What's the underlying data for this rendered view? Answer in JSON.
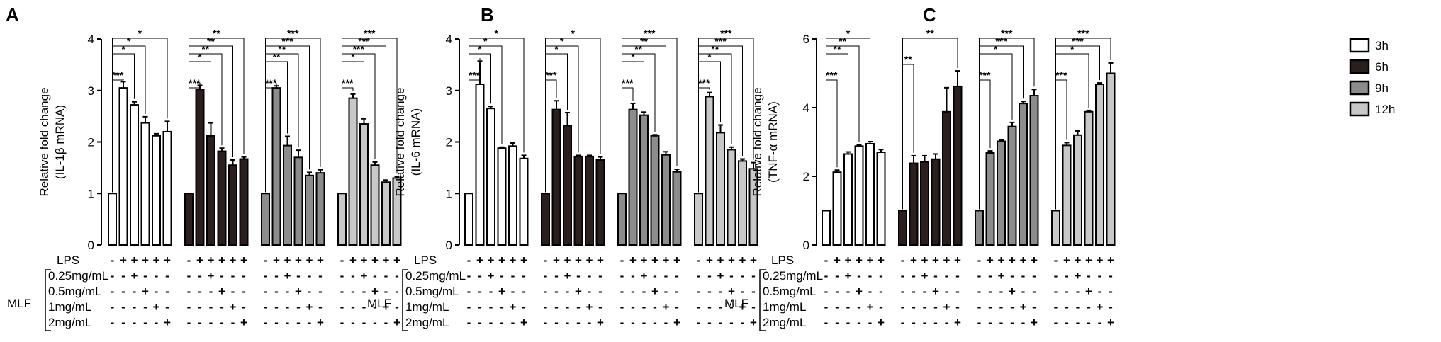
{
  "figure": {
    "legend": [
      {
        "label": "3h",
        "color": "#ffffff"
      },
      {
        "label": "6h",
        "color": "#2a1f1d"
      },
      {
        "label": "9h",
        "color": "#8c8c8c"
      },
      {
        "label": "12h",
        "color": "#c8c8c8"
      }
    ],
    "treatment_rows": {
      "lps_label": "LPS",
      "group_label": "MLF",
      "dose_labels": [
        "0.25mg/mL",
        "0.5mg/mL",
        "1mg/mL",
        "2mg/mL"
      ]
    },
    "bar_order_signs": [
      [
        "-",
        "+",
        "+",
        "+",
        "+",
        "+"
      ],
      [
        "-",
        "-",
        "+",
        "-",
        "-",
        "-"
      ],
      [
        "-",
        "-",
        "-",
        "+",
        "-",
        "-"
      ],
      [
        "-",
        "-",
        "-",
        "-",
        "+",
        "-"
      ],
      [
        "-",
        "-",
        "-",
        "-",
        "-",
        "+"
      ]
    ]
  },
  "chart_data": [
    {
      "panel": "A",
      "type": "bar",
      "ylabel_line1": "Relative fold change",
      "ylabel_line2": "(IL-1β mRNA)",
      "ylim": [
        0,
        4
      ],
      "yticks": [
        "0",
        "1",
        "2",
        "3",
        "4"
      ],
      "series": [
        {
          "name": "3h",
          "values": [
            1.0,
            3.05,
            2.72,
            2.37,
            2.12,
            2.2
          ],
          "errors": [
            0,
            0.12,
            0.06,
            0.12,
            0.04,
            0.2
          ],
          "sig": [
            {
              "to": 1,
              "label": "***"
            },
            {
              "to": 2,
              "label": "*"
            },
            {
              "to": 3,
              "label": "*"
            },
            {
              "to": 5,
              "label": "*"
            }
          ]
        },
        {
          "name": "6h",
          "values": [
            1.0,
            3.02,
            2.12,
            1.82,
            1.55,
            1.67
          ],
          "errors": [
            0,
            0.08,
            0.25,
            0.06,
            0.1,
            0.04
          ],
          "sig": [
            {
              "to": 1,
              "label": "***"
            },
            {
              "to": 2,
              "label": "*"
            },
            {
              "to": 3,
              "label": "**"
            },
            {
              "to": 4,
              "label": "**"
            },
            {
              "to": 5,
              "label": "**"
            }
          ]
        },
        {
          "name": "9h",
          "values": [
            1.0,
            3.05,
            1.93,
            1.7,
            1.35,
            1.4
          ],
          "errors": [
            0,
            0.04,
            0.18,
            0.14,
            0.06,
            0.06
          ],
          "sig": [
            {
              "to": 1,
              "label": "***"
            },
            {
              "to": 2,
              "label": "**"
            },
            {
              "to": 3,
              "label": "**"
            },
            {
              "to": 4,
              "label": "***"
            },
            {
              "to": 5,
              "label": "***"
            }
          ]
        },
        {
          "name": "12h",
          "values": [
            1.0,
            2.85,
            2.35,
            1.55,
            1.22,
            1.3
          ],
          "errors": [
            0,
            0.08,
            0.1,
            0.06,
            0.04,
            0.03
          ],
          "sig": [
            {
              "to": 1,
              "label": "***"
            },
            {
              "to": 2,
              "label": "*"
            },
            {
              "to": 3,
              "label": "***"
            },
            {
              "to": 4,
              "label": "***"
            },
            {
              "to": 5,
              "label": "***"
            }
          ]
        }
      ]
    },
    {
      "panel": "B",
      "type": "bar",
      "ylabel_line1": "Relative fold change",
      "ylabel_line2": "(IL-6 mRNA)",
      "ylim": [
        0,
        4
      ],
      "yticks": [
        "0",
        "1",
        "2",
        "3",
        "4"
      ],
      "series": [
        {
          "name": "3h",
          "values": [
            1.0,
            3.12,
            2.65,
            1.88,
            1.92,
            1.68
          ],
          "errors": [
            0,
            0.45,
            0.04,
            0.02,
            0.06,
            0.06
          ],
          "sig": [
            {
              "to": 1,
              "label": "***"
            },
            {
              "to": 2,
              "label": "*"
            },
            {
              "to": 3,
              "label": "*"
            },
            {
              "to": 5,
              "label": "*"
            }
          ]
        },
        {
          "name": "6h",
          "values": [
            1.0,
            2.63,
            2.32,
            1.72,
            1.72,
            1.65
          ],
          "errors": [
            0,
            0.17,
            0.25,
            0.02,
            0.02,
            0.06
          ],
          "sig": [
            {
              "to": 1,
              "label": "***"
            },
            {
              "to": 2,
              "label": "*"
            },
            {
              "to": 3,
              "label": "*"
            },
            {
              "to": 5,
              "label": "*"
            }
          ]
        },
        {
          "name": "9h",
          "values": [
            1.0,
            2.63,
            2.52,
            2.12,
            1.75,
            1.42
          ],
          "errors": [
            0,
            0.12,
            0.06,
            0.02,
            0.06,
            0.05
          ],
          "sig": [
            {
              "to": 1,
              "label": "***"
            },
            {
              "to": 2,
              "label": "*"
            },
            {
              "to": 3,
              "label": "**"
            },
            {
              "to": 4,
              "label": "**"
            },
            {
              "to": 5,
              "label": "***"
            }
          ]
        },
        {
          "name": "12h",
          "values": [
            1.0,
            2.88,
            2.18,
            1.85,
            1.63,
            1.48
          ],
          "errors": [
            0,
            0.08,
            0.15,
            0.05,
            0.04,
            0.12
          ],
          "sig": [
            {
              "to": 1,
              "label": "***"
            },
            {
              "to": 2,
              "label": "*"
            },
            {
              "to": 3,
              "label": "**"
            },
            {
              "to": 4,
              "label": "***"
            },
            {
              "to": 5,
              "label": "***"
            }
          ]
        }
      ]
    },
    {
      "panel": "C",
      "type": "bar",
      "ylabel_line1": "Relative fold change",
      "ylabel_line2": "(TNF-α mRNA)",
      "ylim": [
        0,
        6
      ],
      "yticks": [
        "0",
        "2",
        "4",
        "6"
      ],
      "series": [
        {
          "name": "3h",
          "values": [
            1.0,
            2.12,
            2.65,
            2.88,
            2.95,
            2.7
          ],
          "errors": [
            0,
            0.06,
            0.06,
            0.04,
            0.06,
            0.08
          ],
          "sig": [
            {
              "to": 1,
              "label": "***"
            },
            {
              "to": 2,
              "label": "**"
            },
            {
              "to": 3,
              "label": "**"
            },
            {
              "to": 4,
              "label": "*"
            }
          ]
        },
        {
          "name": "6h",
          "values": [
            1.0,
            2.38,
            2.42,
            2.5,
            3.88,
            4.62
          ],
          "errors": [
            0,
            0.22,
            0.18,
            0.15,
            0.7,
            0.45
          ],
          "sig": [
            {
              "to": 1,
              "label": "**"
            },
            {
              "to": 5,
              "label": "**"
            }
          ]
        },
        {
          "name": "9h",
          "values": [
            1.0,
            2.68,
            3.02,
            3.45,
            4.12,
            4.35
          ],
          "errors": [
            0,
            0.06,
            0.04,
            0.12,
            0.06,
            0.18
          ],
          "sig": [
            {
              "to": 1,
              "label": "***"
            },
            {
              "to": 3,
              "label": "*"
            },
            {
              "to": 4,
              "label": "***"
            },
            {
              "to": 5,
              "label": "***"
            }
          ]
        },
        {
          "name": "12h",
          "values": [
            1.0,
            2.9,
            3.2,
            3.88,
            4.68,
            5.0
          ],
          "errors": [
            0,
            0.08,
            0.12,
            0.04,
            0.04,
            0.3
          ],
          "sig": [
            {
              "to": 1,
              "label": "***"
            },
            {
              "to": 3,
              "label": "*"
            },
            {
              "to": 4,
              "label": "***"
            },
            {
              "to": 5,
              "label": "***"
            }
          ]
        }
      ]
    }
  ]
}
